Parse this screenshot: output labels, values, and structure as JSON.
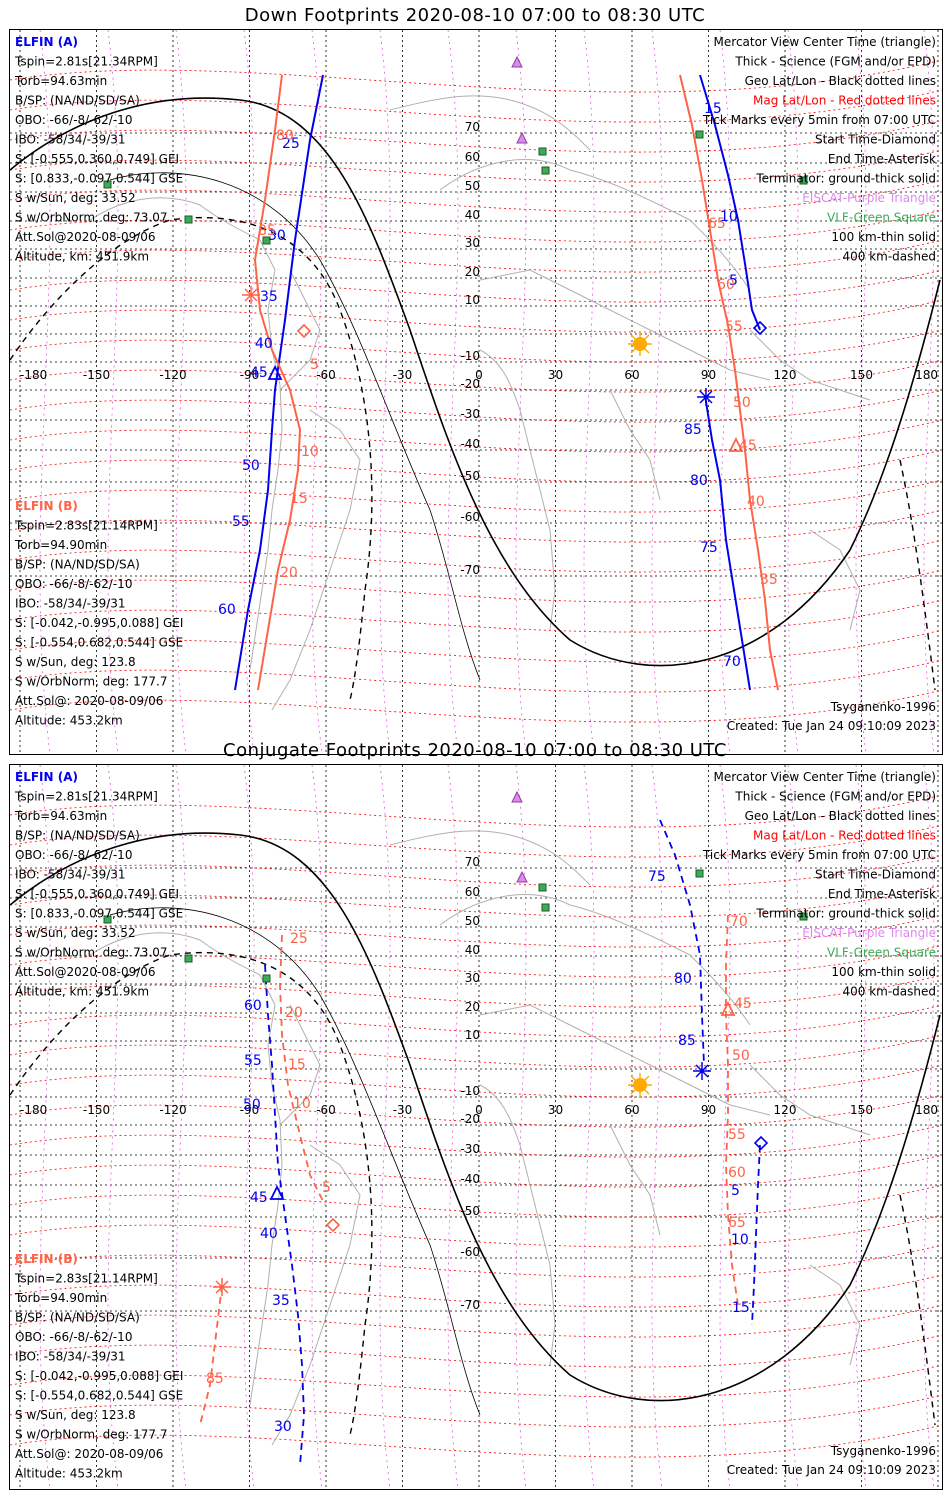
{
  "colors": {
    "elfin_a": "#0000ee",
    "elfin_b": "#ff6347",
    "mag_grid": "#ff0000",
    "eiscat": "#dd88ee",
    "vlf": "#3daa55",
    "geo_grid": "#000000"
  },
  "panels": [
    {
      "title": "Down Footprints 2020-08-10 07:00 to 08:30 UTC",
      "left_info": {
        "a_header": "ELFIN (A)",
        "a_lines": [
          "Tspin=2.81s[21.34RPM]",
          "Torb=94.63min",
          "B/SP: (NA/ND/SD/SA)",
          "OBO: -66/-8/-62/-10",
          "IBO: -58/34/-39/31",
          "S: [-0.555,0.360,0.749] GEI",
          "S: [0.833,-0.097,0.544] GSE",
          "S w/Sun, deg: 33.52",
          "S w/OrbNorm, deg: 73.07",
          "Att.Sol@2020-08-09/06",
          "Altitude, km: 451.9km"
        ],
        "b_header": "ELFIN (B)",
        "b_lines": [
          "Tspin=2.83s[21.14RPM]",
          "Torb=94.90min",
          "B/SP: (NA/ND/SD/SA)",
          "OBO: -66/-8/-62/-10",
          "IBO: -58/34/-39/31",
          "S: [-0.042,-0.995,0.088] GEI",
          "S: [-0.554,0.682,0.544] GSE",
          "S w/Sun, deg: 123.8",
          "S w/OrbNorm, deg: 177.7",
          "Att.Sol@: 2020-08-09/06",
          "Altitude: 453.2km"
        ]
      },
      "legend": [
        "Mercator View Center Time (triangle)",
        "Thick - Science (FGM and/or EPD)",
        "Geo Lat/Lon - Black dotted lines",
        "Mag Lat/Lon - Red dotted lines",
        "Tick Marks every 5min from 07:00 UTC",
        "Start Time-Diamond",
        "End Time-Asterisk",
        "Terminator: ground-thick solid",
        "EISCAT-Purple Triangle",
        "VLF-Green Square",
        "100 km-thin solid",
        "400 km-dashed"
      ],
      "footer_left": "Tsyganenko-1996",
      "footer_created": "Created: Tue Jan 24 09:10:09 2023",
      "lon_labels": [
        "-180",
        "-150",
        "-120",
        "-90",
        "-60",
        "-30",
        "0",
        "30",
        "60",
        "90",
        "120",
        "150",
        "180"
      ],
      "lat_labels": [
        "70",
        "60",
        "50",
        "40",
        "30",
        "20",
        "10",
        "0",
        "-10",
        "-20",
        "-30",
        "-40",
        "-50",
        "-60",
        "-70"
      ],
      "tick_labels_a": [
        "25",
        "30",
        "35",
        "40",
        "45",
        "50",
        "55",
        "60",
        "15",
        "10",
        "5",
        "85",
        "80",
        "75",
        "70"
      ],
      "tick_labels_b": [
        "80",
        "85",
        "5",
        "10",
        "15",
        "20",
        "65",
        "60",
        "55",
        "50",
        "45",
        "40",
        "35"
      ]
    },
    {
      "title": "Conjugate Footprints 2020-08-10 07:00 to 08:30 UTC",
      "left_info": {
        "a_header": "ELFIN (A)",
        "a_lines": [
          "Tspin=2.81s[21.34RPM]",
          "Torb=94.63min",
          "B/SP: (NA/ND/SD/SA)",
          "OBO: -66/-8/-62/-10",
          "IBO: -58/34/-39/31",
          "S: [-0.555,0.360,0.749] GEI",
          "S: [0.833,-0.097,0.544] GSE",
          "S w/Sun, deg: 33.52",
          "S w/OrbNorm, deg: 73.07",
          "Att.Sol@2020-08-09/06",
          "Altitude, km: 451.9km"
        ],
        "b_header": "ELFIN (B)",
        "b_lines": [
          "Tspin=2.83s[21.14RPM]",
          "Torb=94.90min",
          "B/SP: (NA/ND/SD/SA)",
          "OBO: -66/-8/-62/-10",
          "IBO: -58/34/-39/31",
          "S: [-0.042,-0.995,0.088] GEI",
          "S: [-0.554,0.682,0.544] GSE",
          "S w/Sun, deg: 123.8",
          "S w/OrbNorm, deg: 177.7",
          "Att.Sol@: 2020-08-09/06",
          "Altitude: 453.2km"
        ]
      },
      "legend": [
        "Mercator View Center Time (triangle)",
        "Thick - Science (FGM and/or EPD)",
        "Geo Lat/Lon - Black dotted lines",
        "Mag Lat/Lon - Red dotted lines",
        "Tick Marks every 5min from 07:00 UTC",
        "Start Time-Diamond",
        "End Time-Asterisk",
        "Terminator: ground-thick solid",
        "EISCAT-Purple Triangle",
        "VLF-Green Square",
        "100 km-thin solid",
        "400 km-dashed"
      ],
      "footer_left": "Tsyganenko-1996",
      "footer_created": "Created: Tue Jan 24 09:10:09 2023",
      "lon_labels": [
        "-180",
        "-150",
        "-120",
        "-90",
        "-60",
        "-30",
        "0",
        "30",
        "60",
        "90",
        "120",
        "150",
        "180"
      ],
      "lat_labels": [
        "70",
        "60",
        "50",
        "40",
        "30",
        "20",
        "10",
        "0",
        "-10",
        "-20",
        "-30",
        "-40",
        "-50",
        "-60",
        "-70"
      ],
      "tick_labels_a": [
        "75",
        "80",
        "85",
        "60",
        "55",
        "50",
        "45",
        "40",
        "35",
        "30",
        "5",
        "10",
        "15"
      ],
      "tick_labels_b": [
        "25",
        "20",
        "15",
        "10",
        "5",
        "85",
        "70",
        "45",
        "50",
        "55",
        "60",
        "65"
      ]
    }
  ]
}
